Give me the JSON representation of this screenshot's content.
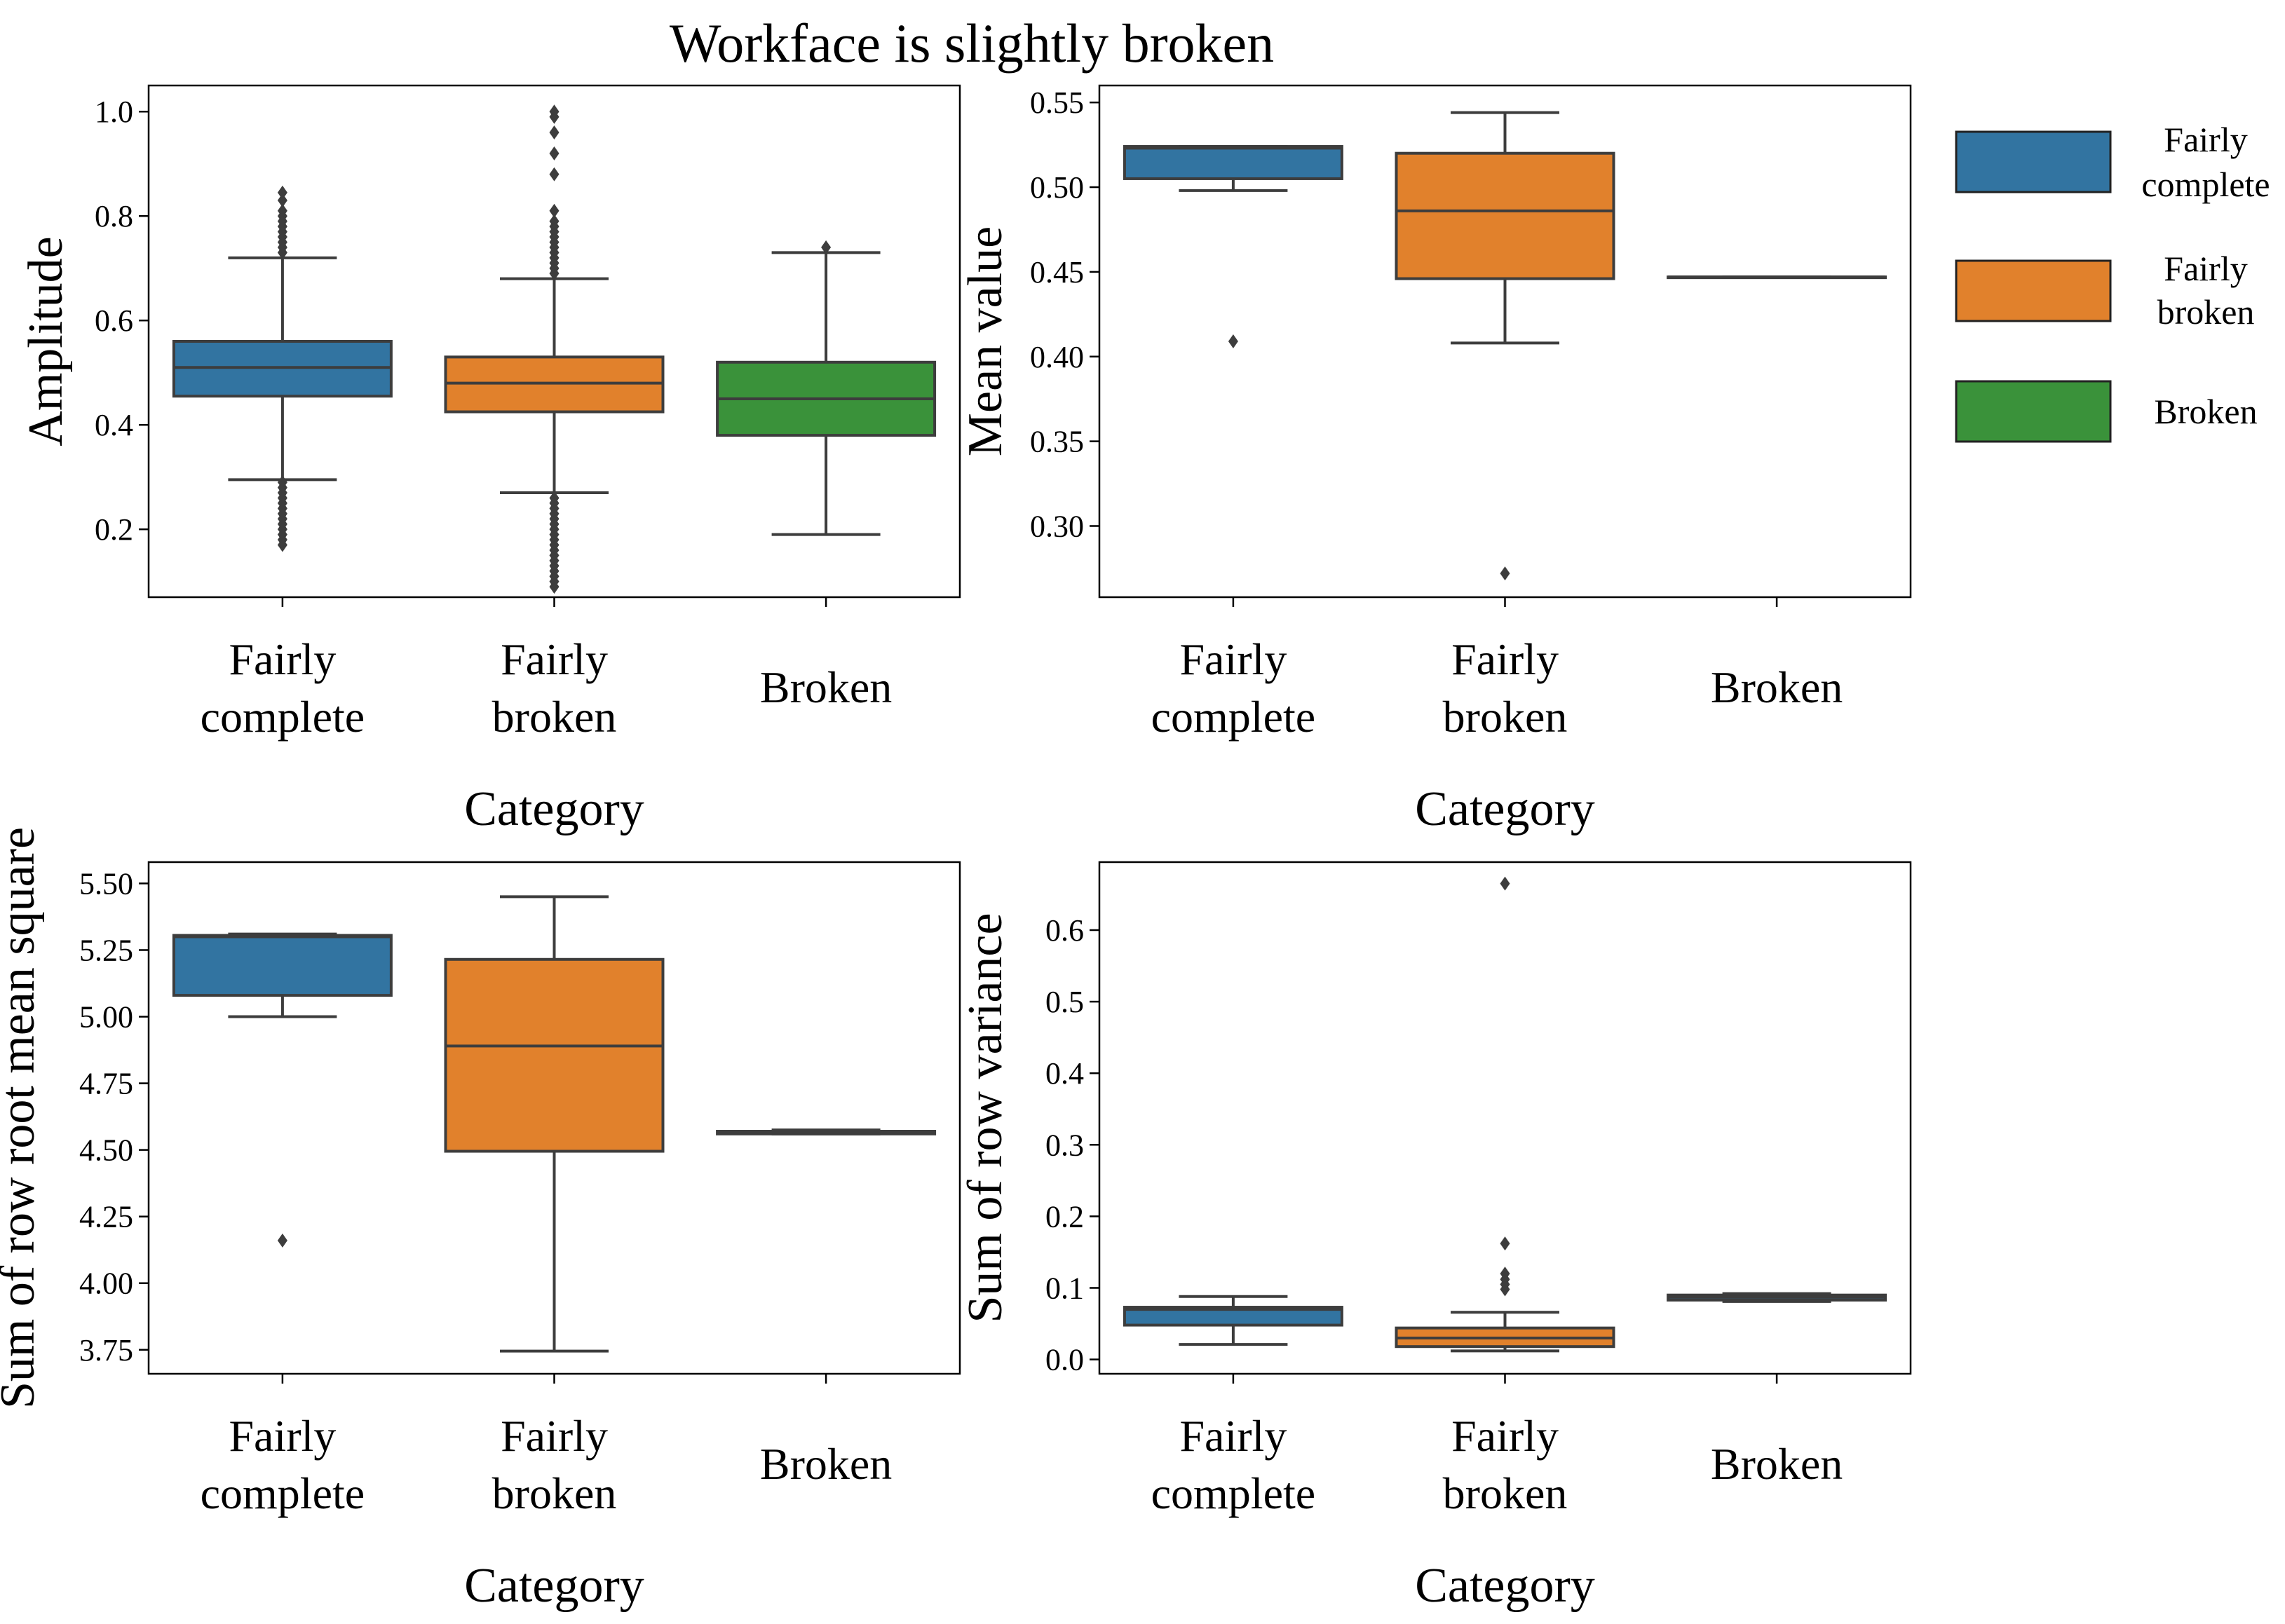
{
  "figure_title": "Workface is slightly broken",
  "colors": {
    "fairly_complete": "#3274a1",
    "fairly_broken": "#e1812c",
    "broken": "#3a923a",
    "line": "#3d3d3d"
  },
  "legend": [
    {
      "label_line1": "Fairly",
      "label_line2": "complete",
      "color_key": "fairly_complete"
    },
    {
      "label_line1": "Fairly",
      "label_line2": "broken",
      "color_key": "fairly_broken"
    },
    {
      "label_line1": "Broken",
      "label_line2": "",
      "color_key": "broken"
    }
  ],
  "chart_data": [
    {
      "type": "box",
      "id": "amplitude",
      "title": "",
      "xlabel": "Category",
      "ylabel": "Amplitude",
      "categories": [
        {
          "line1": "Fairly",
          "line2": "complete"
        },
        {
          "line1": "Fairly",
          "line2": "broken"
        },
        {
          "line1": "Broken",
          "line2": ""
        }
      ],
      "ylim": [
        0.07,
        1.05
      ],
      "yticks": [
        0.2,
        0.4,
        0.6,
        0.8,
        1.0
      ],
      "ytick_labels": [
        "0.2",
        "0.4",
        "0.6",
        "0.8",
        "1.0"
      ],
      "boxes": [
        {
          "category": "Fairly complete",
          "color_key": "fairly_complete",
          "whislo": 0.295,
          "q1": 0.455,
          "med": 0.51,
          "q3": 0.56,
          "whishi": 0.72,
          "fliers": [
            0.17,
            0.18,
            0.19,
            0.2,
            0.21,
            0.22,
            0.23,
            0.24,
            0.25,
            0.26,
            0.27,
            0.28,
            0.29,
            0.73,
            0.74,
            0.75,
            0.76,
            0.77,
            0.78,
            0.79,
            0.8,
            0.81,
            0.83,
            0.845
          ]
        },
        {
          "category": "Fairly broken",
          "color_key": "fairly_broken",
          "whislo": 0.27,
          "q1": 0.425,
          "med": 0.48,
          "q3": 0.53,
          "whishi": 0.68,
          "fliers": [
            0.09,
            0.1,
            0.11,
            0.12,
            0.13,
            0.14,
            0.15,
            0.16,
            0.17,
            0.18,
            0.19,
            0.2,
            0.21,
            0.22,
            0.23,
            0.24,
            0.25,
            0.26,
            0.69,
            0.7,
            0.71,
            0.72,
            0.73,
            0.74,
            0.75,
            0.76,
            0.77,
            0.78,
            0.79,
            0.81,
            0.88,
            0.92,
            0.96,
            0.99,
            1.0
          ]
        },
        {
          "category": "Broken",
          "color_key": "broken",
          "whislo": 0.19,
          "q1": 0.38,
          "med": 0.45,
          "q3": 0.52,
          "whishi": 0.73,
          "fliers": [
            0.74
          ]
        }
      ]
    },
    {
      "type": "box",
      "id": "mean_value",
      "title": "",
      "xlabel": "Category",
      "ylabel": "Mean value",
      "categories": [
        {
          "line1": "Fairly",
          "line2": "complete"
        },
        {
          "line1": "Fairly",
          "line2": "broken"
        },
        {
          "line1": "Broken",
          "line2": ""
        }
      ],
      "ylim": [
        0.258,
        0.56
      ],
      "yticks": [
        0.3,
        0.35,
        0.4,
        0.45,
        0.5,
        0.55
      ],
      "ytick_labels": [
        "0.30",
        "0.35",
        "0.40",
        "0.45",
        "0.50",
        "0.55"
      ],
      "boxes": [
        {
          "category": "Fairly complete",
          "color_key": "fairly_complete",
          "whislo": 0.498,
          "q1": 0.505,
          "med": 0.523,
          "q3": 0.524,
          "whishi": 0.524,
          "fliers": [
            0.409
          ]
        },
        {
          "category": "Fairly broken",
          "color_key": "fairly_broken",
          "whislo": 0.408,
          "q1": 0.446,
          "med": 0.486,
          "q3": 0.52,
          "whishi": 0.544,
          "fliers": [
            0.272
          ]
        },
        {
          "category": "Broken",
          "color_key": "fairly_complete",
          "whislo": 0.447,
          "q1": 0.447,
          "med": 0.447,
          "q3": 0.447,
          "whishi": 0.447,
          "fliers": []
        }
      ]
    },
    {
      "type": "box",
      "id": "rms",
      "title": "",
      "xlabel": "Category",
      "ylabel": "Sum of row root mean square",
      "categories": [
        {
          "line1": "Fairly",
          "line2": "complete"
        },
        {
          "line1": "Fairly",
          "line2": "broken"
        },
        {
          "line1": "Broken",
          "line2": ""
        }
      ],
      "ylim": [
        3.66,
        5.58
      ],
      "yticks": [
        3.75,
        4.0,
        4.25,
        4.5,
        4.75,
        5.0,
        5.25,
        5.5
      ],
      "ytick_labels": [
        "3.75",
        "4.00",
        "4.25",
        "4.50",
        "4.75",
        "5.00",
        "5.25",
        "5.50"
      ],
      "boxes": [
        {
          "category": "Fairly complete",
          "color_key": "fairly_complete",
          "whislo": 5.0,
          "q1": 5.08,
          "med": 5.3,
          "q3": 5.305,
          "whishi": 5.31,
          "fliers": [
            4.16
          ]
        },
        {
          "category": "Fairly broken",
          "color_key": "fairly_broken",
          "whislo": 3.745,
          "q1": 4.495,
          "med": 4.89,
          "q3": 5.215,
          "whishi": 5.45,
          "fliers": []
        },
        {
          "category": "Broken",
          "color_key": "fairly_complete",
          "whislo": 4.56,
          "q1": 4.56,
          "med": 4.565,
          "q3": 4.57,
          "whishi": 4.575,
          "fliers": []
        }
      ]
    },
    {
      "type": "box",
      "id": "variance",
      "title": "",
      "xlabel": "Category",
      "ylabel": "Sum of row variance",
      "categories": [
        {
          "line1": "Fairly",
          "line2": "complete"
        },
        {
          "line1": "Fairly",
          "line2": "broken"
        },
        {
          "line1": "Broken",
          "line2": ""
        }
      ],
      "ylim": [
        -0.02,
        0.695
      ],
      "yticks": [
        0.0,
        0.1,
        0.2,
        0.3,
        0.4,
        0.5,
        0.6
      ],
      "ytick_labels": [
        "0.0",
        "0.1",
        "0.2",
        "0.3",
        "0.4",
        "0.5",
        "0.6"
      ],
      "boxes": [
        {
          "category": "Fairly complete",
          "color_key": "fairly_complete",
          "whislo": 0.021,
          "q1": 0.048,
          "med": 0.07,
          "q3": 0.073,
          "whishi": 0.088,
          "fliers": []
        },
        {
          "category": "Fairly broken",
          "color_key": "fairly_broken",
          "whislo": 0.012,
          "q1": 0.018,
          "med": 0.03,
          "q3": 0.044,
          "whishi": 0.066,
          "fliers": [
            0.098,
            0.105,
            0.112,
            0.12,
            0.162,
            0.665
          ]
        },
        {
          "category": "Broken",
          "color_key": "fairly_complete",
          "whislo": 0.081,
          "q1": 0.083,
          "med": 0.087,
          "q3": 0.09,
          "whishi": 0.092,
          "fliers": []
        }
      ]
    }
  ]
}
